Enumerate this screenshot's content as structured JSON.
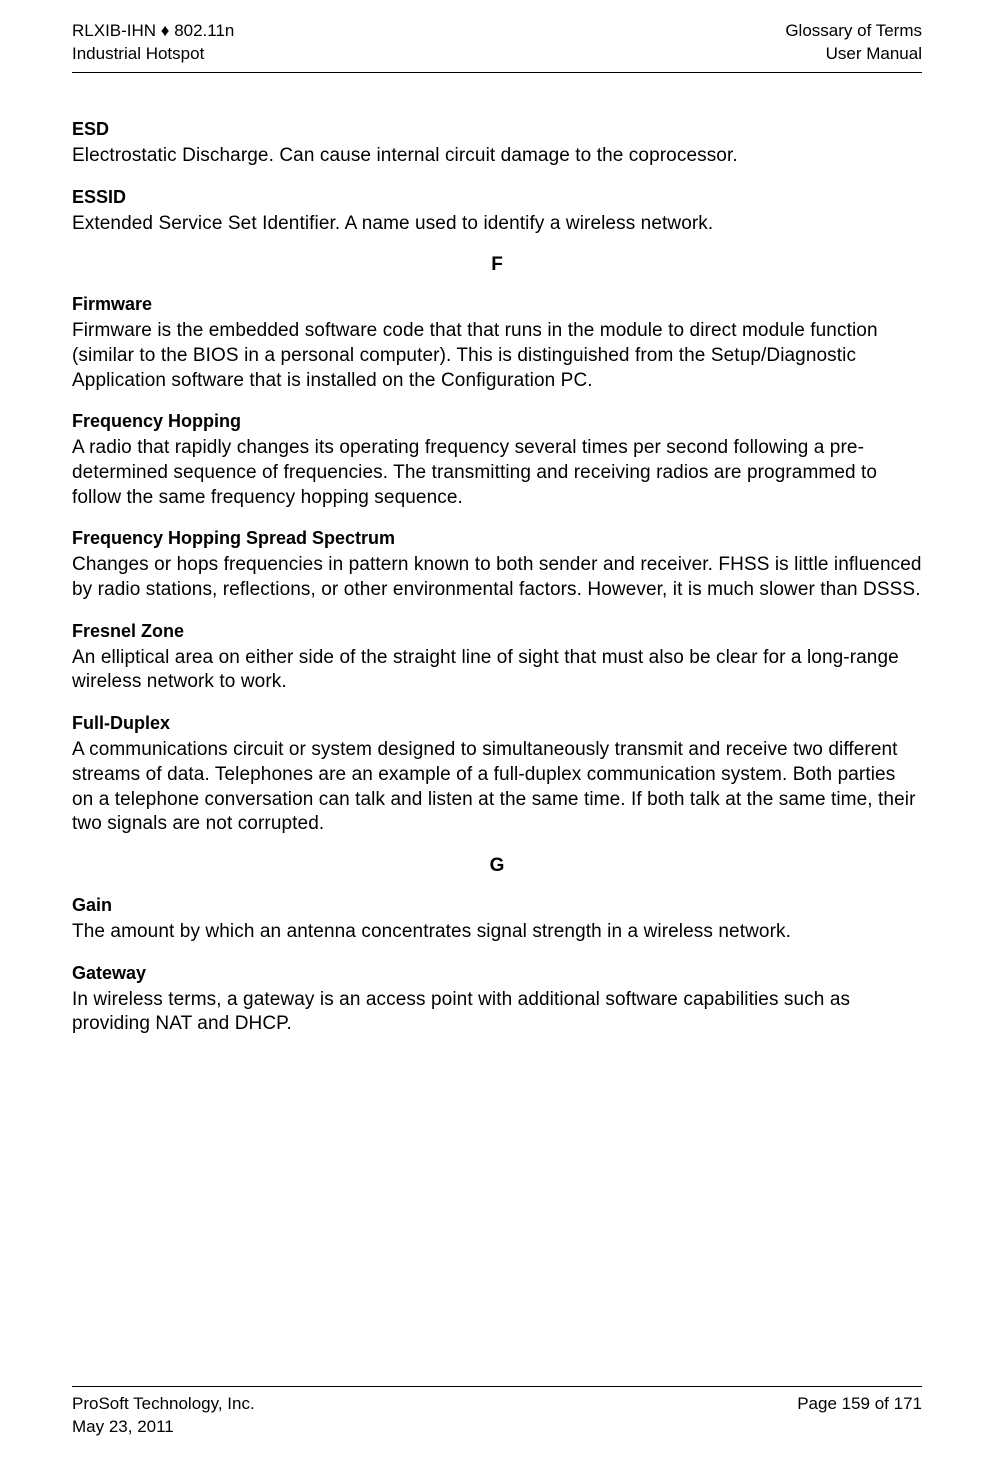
{
  "header": {
    "left_line1": "RLXIB-IHN ♦ 802.11n",
    "left_line2": "Industrial Hotspot",
    "right_line1": "Glossary of Terms",
    "right_line2": "User Manual"
  },
  "entries": [
    {
      "term": "ESD",
      "def": "Electrostatic Discharge. Can cause internal circuit damage to the coprocessor."
    },
    {
      "term": "ESSID",
      "def": "Extended Service Set Identifier. A name used to identify a wireless network."
    }
  ],
  "section_f": {
    "letter": "F",
    "items": [
      {
        "term": "Firmware",
        "def": "Firmware is the embedded software code that that runs in the module to direct module function (similar to the BIOS in a personal computer). This is distinguished from the Setup/Diagnostic Application software that is installed on the Configuration PC."
      },
      {
        "term": "Frequency Hopping",
        "def": "A radio that rapidly changes its operating frequency several times per second following a pre-determined sequence of frequencies. The transmitting and receiving radios are programmed to follow the same frequency hopping sequence."
      },
      {
        "term": "Frequency Hopping Spread Spectrum",
        "def": "Changes or hops frequencies in pattern known to both sender and receiver. FHSS is little influenced by radio stations, reflections, or other environmental factors. However, it is much slower than DSSS."
      },
      {
        "term": "Fresnel Zone",
        "def": "An elliptical area on either side of the straight line of sight that must also be clear for a long-range wireless network to work."
      },
      {
        "term": "Full-Duplex",
        "def": "A communications circuit or system designed to simultaneously transmit and receive two different streams of data. Telephones are an example of a full-duplex communication system. Both parties on a telephone conversation can talk and listen at the same time. If both talk at the same time, their two signals are not corrupted."
      }
    ]
  },
  "section_g": {
    "letter": "G",
    "items": [
      {
        "term": "Gain",
        "def": "The amount by which an antenna concentrates signal strength in a wireless network."
      },
      {
        "term": "Gateway",
        "def": "In wireless terms, a gateway is an access point with additional software capabilities such as providing NAT and DHCP."
      }
    ]
  },
  "footer": {
    "left_line1": "ProSoft Technology, Inc.",
    "left_line2": "May 23, 2011",
    "right_line1": "Page 159 of 171"
  }
}
